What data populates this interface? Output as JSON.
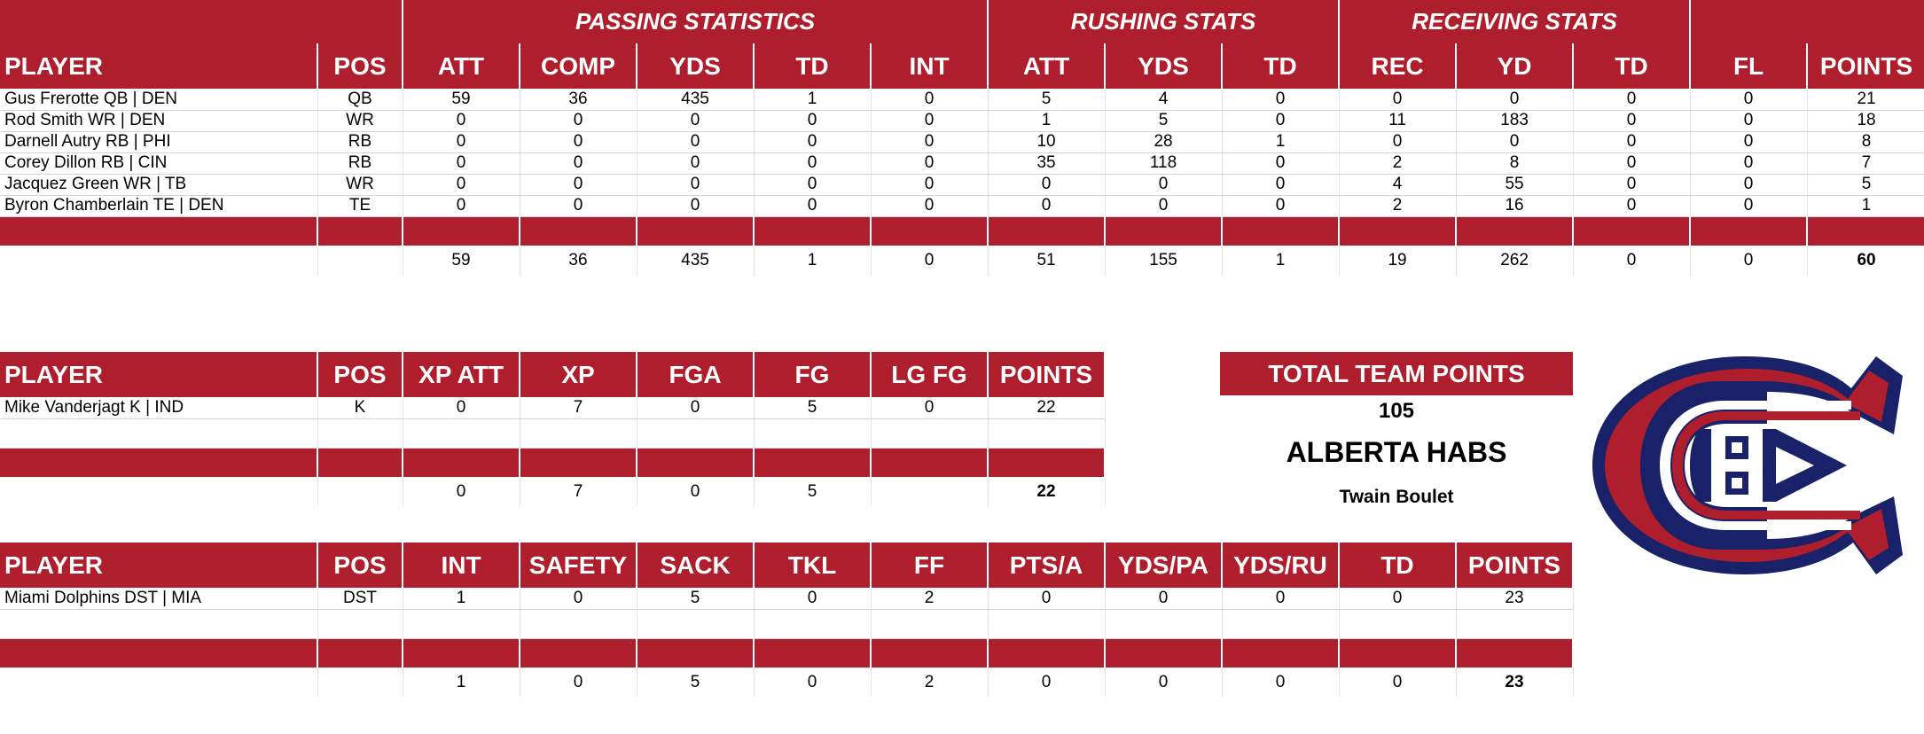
{
  "offense": {
    "group_headers": [
      "PASSING STATISTICS",
      "RUSHING STATS",
      "RECEIVING STATS"
    ],
    "columns": [
      "PLAYER",
      "POS",
      "ATT",
      "COMP",
      "YDS",
      "TD",
      "INT",
      "ATT",
      "YDS",
      "TD",
      "REC",
      "YD",
      "TD",
      "FL",
      "POINTS"
    ],
    "rows": [
      [
        "Gus Frerotte QB | DEN",
        "QB",
        "59",
        "36",
        "435",
        "1",
        "0",
        "5",
        "4",
        "0",
        "0",
        "0",
        "0",
        "0",
        "21"
      ],
      [
        "Rod Smith WR | DEN",
        "WR",
        "0",
        "0",
        "0",
        "0",
        "0",
        "1",
        "5",
        "0",
        "11",
        "183",
        "0",
        "0",
        "18"
      ],
      [
        "Darnell Autry RB | PHI",
        "RB",
        "0",
        "0",
        "0",
        "0",
        "0",
        "10",
        "28",
        "1",
        "0",
        "0",
        "0",
        "0",
        "8"
      ],
      [
        "Corey Dillon RB | CIN",
        "RB",
        "0",
        "0",
        "0",
        "0",
        "0",
        "35",
        "118",
        "0",
        "2",
        "8",
        "0",
        "0",
        "7"
      ],
      [
        "Jacquez Green WR | TB",
        "WR",
        "0",
        "0",
        "0",
        "0",
        "0",
        "0",
        "0",
        "0",
        "4",
        "55",
        "0",
        "0",
        "5"
      ],
      [
        "Byron Chamberlain TE | DEN",
        "TE",
        "0",
        "0",
        "0",
        "0",
        "0",
        "0",
        "0",
        "0",
        "2",
        "16",
        "0",
        "0",
        "1"
      ]
    ],
    "totals": [
      "",
      "",
      "59",
      "36",
      "435",
      "1",
      "0",
      "51",
      "155",
      "1",
      "19",
      "262",
      "0",
      "0",
      "60"
    ]
  },
  "kicker": {
    "columns": [
      "PLAYER",
      "POS",
      "XP ATT",
      "XP",
      "FGA",
      "FG",
      "LG FG",
      "POINTS"
    ],
    "rows": [
      [
        "Mike Vanderjagt K | IND",
        "K",
        "0",
        "7",
        "0",
        "5",
        "0",
        "22"
      ]
    ],
    "totals": [
      "",
      "",
      "0",
      "7",
      "0",
      "5",
      "",
      "22"
    ]
  },
  "defense": {
    "columns": [
      "PLAYER",
      "POS",
      "INT",
      "SAFETY",
      "SACK",
      "TKL",
      "FF",
      "PTS/A",
      "YDS/PA",
      "YDS/RU",
      "TD",
      "POINTS"
    ],
    "rows": [
      [
        "Miami Dolphins DST | MIA",
        "DST",
        "1",
        "0",
        "5",
        "0",
        "2",
        "0",
        "0",
        "0",
        "0",
        "23"
      ]
    ],
    "totals": [
      "",
      "",
      "1",
      "0",
      "5",
      "0",
      "2",
      "0",
      "0",
      "0",
      "0",
      "23"
    ]
  },
  "summary": {
    "label": "TOTAL TEAM POINTS",
    "total": "105",
    "team_name": "ALBERTA HABS",
    "owner": "Twain Boulet"
  },
  "logo": {
    "icon": "habs-logo-icon",
    "colors": {
      "red": "#af1e2d",
      "blue": "#192168",
      "white": "#ffffff"
    }
  },
  "colors": {
    "header_red": "#af1e2d"
  }
}
